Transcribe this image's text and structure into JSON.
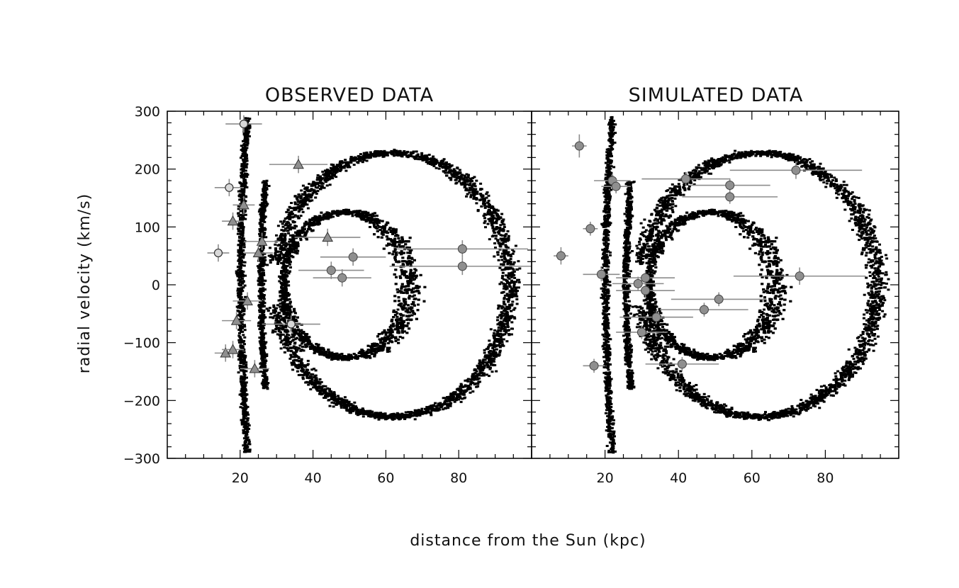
{
  "chart_data": [
    {
      "type": "scatter",
      "title": "OBSERVED DATA",
      "xlabel": "distance from the Sun (kpc)",
      "ylabel": "radial velocity (km/s)",
      "xlim": [
        0,
        100
      ],
      "ylim": [
        -300,
        300
      ],
      "x_ticks": [
        20,
        40,
        60,
        80
      ],
      "y_ticks": [
        300,
        200,
        100,
        0,
        -100,
        -200,
        -300
      ],
      "grid": false,
      "background_simulation": "dense black particle distribution (loop structures)",
      "series": [
        {
          "marker": "open-circle",
          "points": [
            {
              "x": 21,
              "y": 278,
              "xerr": 5,
              "yerr": 15
            },
            {
              "x": 17,
              "y": 168,
              "xerr": 4,
              "yerr": 15
            },
            {
              "x": 14,
              "y": 55,
              "xerr": 3,
              "yerr": 15
            },
            {
              "x": 34,
              "y": -68,
              "xerr": 8,
              "yerr": 15
            }
          ]
        },
        {
          "marker": "triangle",
          "points": [
            {
              "x": 36,
              "y": 208,
              "xerr": 8,
              "yerr": 15
            },
            {
              "x": 21,
              "y": 138,
              "xerr": 3,
              "yerr": 15
            },
            {
              "x": 18,
              "y": 110,
              "xerr": 3,
              "yerr": 15
            },
            {
              "x": 26,
              "y": 75,
              "xerr": 5,
              "yerr": 15
            },
            {
              "x": 25,
              "y": 55,
              "xerr": 4,
              "yerr": 15
            },
            {
              "x": 22,
              "y": -28,
              "xerr": 4,
              "yerr": 15
            },
            {
              "x": 19,
              "y": -62,
              "xerr": 4,
              "yerr": 15
            },
            {
              "x": 16,
              "y": -118,
              "xerr": 3,
              "yerr": 15
            },
            {
              "x": 18,
              "y": -112,
              "xerr": 3,
              "yerr": 15
            },
            {
              "x": 24,
              "y": -145,
              "xerr": 4,
              "yerr": 15
            },
            {
              "x": 44,
              "y": 82,
              "xerr": 9,
              "yerr": 15
            }
          ]
        },
        {
          "marker": "filled-circle",
          "points": [
            {
              "x": 45,
              "y": 25,
              "xerr": 9,
              "yerr": 15
            },
            {
              "x": 48,
              "y": 12,
              "xerr": 8,
              "yerr": 15
            },
            {
              "x": 51,
              "y": 48,
              "xerr": 9,
              "yerr": 15
            },
            {
              "x": 81,
              "y": 62,
              "xerr": 18,
              "yerr": 15
            },
            {
              "x": 81,
              "y": 32,
              "xerr": 20,
              "yerr": 15
            }
          ]
        }
      ]
    },
    {
      "type": "scatter",
      "title": "SIMULATED DATA",
      "xlabel": "distance from the Sun (kpc)",
      "ylabel": "",
      "xlim": [
        0,
        100
      ],
      "ylim": [
        -300,
        300
      ],
      "x_ticks": [
        20,
        40,
        60,
        80
      ],
      "grid": false,
      "background_simulation": "dense black particle distribution (loop structures)",
      "series": [
        {
          "marker": "filled-circle",
          "points": [
            {
              "x": 13,
              "y": 240,
              "xerr": 2,
              "yerr": 20
            },
            {
              "x": 22,
              "y": 180,
              "xerr": 5,
              "yerr": 12
            },
            {
              "x": 23,
              "y": 170,
              "xerr": 4,
              "yerr": 12
            },
            {
              "x": 42,
              "y": 183,
              "xerr": 12,
              "yerr": 12
            },
            {
              "x": 54,
              "y": 172,
              "xerr": 11,
              "yerr": 12
            },
            {
              "x": 54,
              "y": 152,
              "xerr": 13,
              "yerr": 12
            },
            {
              "x": 72,
              "y": 198,
              "xerr": 18,
              "yerr": 15
            },
            {
              "x": 16,
              "y": 97,
              "xerr": 2,
              "yerr": 12
            },
            {
              "x": 8,
              "y": 50,
              "xerr": 2,
              "yerr": 15
            },
            {
              "x": 19,
              "y": 18,
              "xerr": 5,
              "yerr": 12
            },
            {
              "x": 29,
              "y": 2,
              "xerr": 7,
              "yerr": 12
            },
            {
              "x": 31,
              "y": 12,
              "xerr": 8,
              "yerr": 12
            },
            {
              "x": 31,
              "y": -10,
              "xerr": 8,
              "yerr": 12
            },
            {
              "x": 51,
              "y": -25,
              "xerr": 13,
              "yerr": 12
            },
            {
              "x": 47,
              "y": -43,
              "xerr": 12,
              "yerr": 12
            },
            {
              "x": 34,
              "y": -56,
              "xerr": 10,
              "yerr": 12
            },
            {
              "x": 30,
              "y": -82,
              "xerr": 7,
              "yerr": 12
            },
            {
              "x": 73,
              "y": 15,
              "xerr": 18,
              "yerr": 15
            },
            {
              "x": 41,
              "y": -137,
              "xerr": 10,
              "yerr": 12
            },
            {
              "x": 17,
              "y": -140,
              "xerr": 3,
              "yerr": 12
            }
          ]
        }
      ]
    }
  ]
}
